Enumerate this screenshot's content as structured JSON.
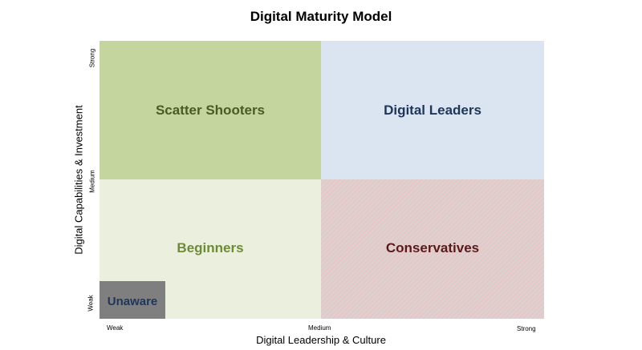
{
  "title": "Digital Maturity Model",
  "quadrants": {
    "scatter_shooters": {
      "label": "Scatter Shooters",
      "color": "#c4d69e"
    },
    "digital_leaders": {
      "label": "Digital Leaders",
      "color": "#dbe5f1"
    },
    "beginners": {
      "label": "Beginners",
      "color": "#ebf0de"
    },
    "conservatives": {
      "label": "Conservatives",
      "color": "#e6c6c6"
    },
    "unaware": {
      "label": "Unaware",
      "color": "#7f7f7f"
    }
  },
  "x_axis": {
    "label": "Digital Leadership & Culture",
    "ticks": [
      "Weak",
      "Medium",
      "Strong"
    ]
  },
  "y_axis": {
    "label": "Digital Capabilities & Investment",
    "ticks": [
      "Weak",
      "Medium",
      "Strong"
    ]
  }
}
